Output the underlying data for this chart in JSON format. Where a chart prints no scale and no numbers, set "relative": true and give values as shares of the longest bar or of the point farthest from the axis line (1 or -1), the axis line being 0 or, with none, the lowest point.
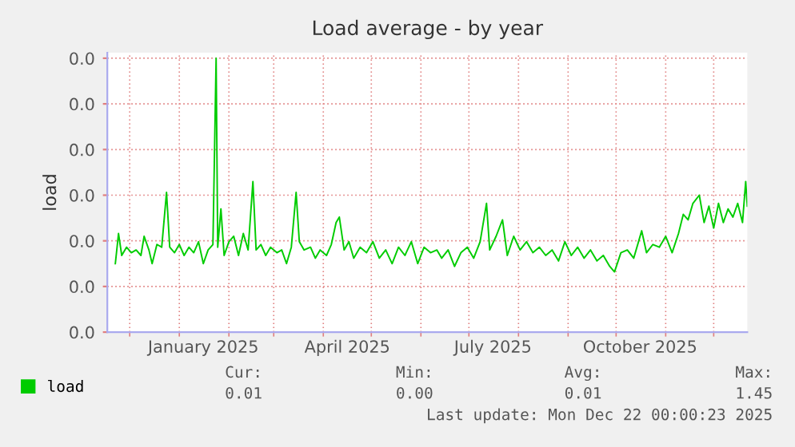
{
  "chart_data": {
    "type": "line",
    "title": "Load average - by year",
    "ylabel": "load",
    "relative": true,
    "xlim": [
      "2024-11-17",
      "2025-12-22"
    ],
    "xticks": [
      {
        "value": "2024-12-01",
        "label": null
      },
      {
        "value": "2025-01-01",
        "label": null
      },
      {
        "value": "2025-01-16",
        "label": "January 2025"
      },
      {
        "value": "2025-02-01",
        "label": null
      },
      {
        "value": "2025-03-01",
        "label": null
      },
      {
        "value": "2025-04-01",
        "label": null
      },
      {
        "value": "2025-04-16",
        "label": "April 2025"
      },
      {
        "value": "2025-05-01",
        "label": null
      },
      {
        "value": "2025-06-01",
        "label": null
      },
      {
        "value": "2025-07-01",
        "label": null
      },
      {
        "value": "2025-07-16",
        "label": "July 2025"
      },
      {
        "value": "2025-08-01",
        "label": null
      },
      {
        "value": "2025-09-01",
        "label": null
      },
      {
        "value": "2025-10-01",
        "label": null
      },
      {
        "value": "2025-10-16",
        "label": "October 2025"
      },
      {
        "value": "2025-11-01",
        "label": null
      },
      {
        "value": "2025-12-01",
        "label": null
      }
    ],
    "grid": true,
    "legend": "bottom left",
    "annotations": [
      "0.0",
      "0.0",
      "0.0",
      "0.0",
      "0.0",
      "0.0",
      "0.0",
      "Cur:",
      "Min:",
      "Avg:",
      "Max:",
      "0.01",
      "0.00",
      "0.01",
      "1.45",
      "Last update: Mon Dec 22 00:00:23 2025"
    ],
    "x": [
      "2024-11-22",
      "2024-11-24",
      "2024-11-26",
      "2024-11-29",
      "2024-12-02",
      "2024-12-05",
      "2024-12-08",
      "2024-12-10",
      "2024-12-13",
      "2024-12-15",
      "2024-12-18",
      "2024-12-21",
      "2024-12-24",
      "2024-12-26",
      "2024-12-29",
      "2025-01-01",
      "2025-01-04",
      "2025-01-07",
      "2025-01-10",
      "2025-01-13",
      "2025-01-16",
      "2025-01-19",
      "2025-01-22",
      "2025-01-24",
      "2025-01-25",
      "2025-01-27",
      "2025-01-29",
      "2025-02-01",
      "2025-02-04",
      "2025-02-07",
      "2025-02-10",
      "2025-02-13",
      "2025-02-16",
      "2025-02-18",
      "2025-02-21",
      "2025-02-24",
      "2025-02-27",
      "2025-03-03",
      "2025-03-06",
      "2025-03-09",
      "2025-03-12",
      "2025-03-15",
      "2025-03-17",
      "2025-03-20",
      "2025-03-24",
      "2025-03-27",
      "2025-03-30",
      "2025-04-03",
      "2025-04-06",
      "2025-04-09",
      "2025-04-11",
      "2025-04-14",
      "2025-04-17",
      "2025-04-20",
      "2025-04-24",
      "2025-04-28",
      "2025-05-02",
      "2025-05-06",
      "2025-05-10",
      "2025-05-14",
      "2025-05-18",
      "2025-05-22",
      "2025-05-26",
      "2025-05-30",
      "2025-06-03",
      "2025-06-07",
      "2025-06-11",
      "2025-06-14",
      "2025-06-18",
      "2025-06-22",
      "2025-06-26",
      "2025-06-30",
      "2025-07-04",
      "2025-07-08",
      "2025-07-12",
      "2025-07-14",
      "2025-07-18",
      "2025-07-22",
      "2025-07-25",
      "2025-07-29",
      "2025-08-02",
      "2025-08-06",
      "2025-08-10",
      "2025-08-14",
      "2025-08-18",
      "2025-08-22",
      "2025-08-26",
      "2025-08-30",
      "2025-09-03",
      "2025-09-07",
      "2025-09-11",
      "2025-09-15",
      "2025-09-19",
      "2025-09-23",
      "2025-09-27",
      "2025-09-30",
      "2025-10-04",
      "2025-10-08",
      "2025-10-12",
      "2025-10-17",
      "2025-10-20",
      "2025-10-24",
      "2025-10-28",
      "2025-11-01",
      "2025-11-05",
      "2025-11-09",
      "2025-11-12",
      "2025-11-15",
      "2025-11-18",
      "2025-11-22",
      "2025-11-25",
      "2025-11-28",
      "2025-12-01",
      "2025-12-04",
      "2025-12-07",
      "2025-12-10",
      "2025-12-13",
      "2025-12-16",
      "2025-12-19",
      "2025-12-21",
      "2025-12-22"
    ],
    "series": [
      {
        "name": "load",
        "color": "#00cc00",
        "values": [
          0.25,
          0.36,
          0.28,
          0.31,
          0.29,
          0.3,
          0.28,
          0.35,
          0.3,
          0.25,
          0.32,
          0.31,
          0.51,
          0.31,
          0.29,
          0.32,
          0.28,
          0.31,
          0.29,
          0.33,
          0.25,
          0.3,
          0.32,
          1.0,
          0.31,
          0.45,
          0.28,
          0.33,
          0.35,
          0.28,
          0.36,
          0.3,
          0.55,
          0.3,
          0.32,
          0.28,
          0.31,
          0.29,
          0.3,
          0.25,
          0.31,
          0.51,
          0.33,
          0.3,
          0.31,
          0.27,
          0.3,
          0.28,
          0.32,
          0.4,
          0.42,
          0.3,
          0.33,
          0.27,
          0.31,
          0.29,
          0.33,
          0.27,
          0.3,
          0.25,
          0.31,
          0.28,
          0.33,
          0.25,
          0.31,
          0.29,
          0.3,
          0.27,
          0.3,
          0.24,
          0.29,
          0.31,
          0.27,
          0.33,
          0.47,
          0.3,
          0.35,
          0.41,
          0.28,
          0.35,
          0.3,
          0.33,
          0.29,
          0.31,
          0.28,
          0.3,
          0.26,
          0.33,
          0.28,
          0.31,
          0.27,
          0.3,
          0.26,
          0.28,
          0.24,
          0.22,
          0.29,
          0.3,
          0.27,
          0.37,
          0.29,
          0.32,
          0.31,
          0.35,
          0.29,
          0.36,
          0.43,
          0.41,
          0.47,
          0.5,
          0.4,
          0.46,
          0.38,
          0.47,
          0.4,
          0.45,
          0.42,
          0.47,
          0.4,
          0.55,
          0.46
        ]
      }
    ]
  }
}
